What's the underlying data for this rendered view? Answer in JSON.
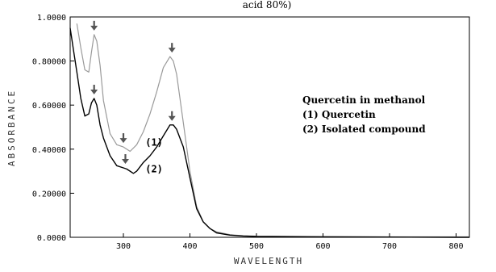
{
  "header_fragment": "acid 80%)",
  "chart_data": {
    "type": "line",
    "title": "",
    "xlabel": "WAVELENGTH",
    "ylabel": "ABSORBANCE",
    "xlim": [
      220,
      820
    ],
    "ylim": [
      0,
      1.0
    ],
    "x_ticks": [
      300,
      400,
      500,
      600,
      700,
      800
    ],
    "x_tick_labels": [
      "300",
      "400",
      "500",
      "600",
      "700",
      "800"
    ],
    "y_ticks": [
      0,
      0.2,
      0.4,
      0.6,
      0.8,
      1.0
    ],
    "y_tick_labels": [
      "0.0000",
      "0.20000",
      "0.40000",
      "0.60000",
      "0.80000",
      "1.0000"
    ],
    "grid": false,
    "legend": {
      "placement": "right",
      "title": "Quercetin in methanol",
      "entries": [
        "(1) Quercetin",
        "(2) Isolated compound"
      ]
    },
    "series": [
      {
        "name": "(1) Quercetin",
        "color": "#9a9a9a",
        "x": [
          230,
          236,
          242,
          248,
          252,
          256,
          260,
          265,
          270,
          280,
          290,
          300,
          310,
          320,
          330,
          340,
          350,
          360,
          370,
          375,
          380,
          390,
          400,
          410,
          420,
          430,
          440,
          460,
          480,
          500,
          600,
          700,
          800,
          820
        ],
        "y": [
          0.97,
          0.86,
          0.76,
          0.75,
          0.84,
          0.92,
          0.89,
          0.78,
          0.62,
          0.47,
          0.42,
          0.41,
          0.39,
          0.42,
          0.48,
          0.56,
          0.66,
          0.77,
          0.82,
          0.8,
          0.74,
          0.52,
          0.3,
          0.14,
          0.07,
          0.04,
          0.025,
          0.012,
          0.007,
          0.005,
          0.003,
          0.002,
          0.002,
          0.002
        ]
      },
      {
        "name": "(2) Isolated compound",
        "color": "#000000",
        "x": [
          220,
          225,
          230,
          236,
          242,
          248,
          252,
          256,
          260,
          265,
          270,
          280,
          290,
          300,
          305,
          310,
          315,
          320,
          330,
          340,
          350,
          360,
          370,
          375,
          380,
          390,
          400,
          410,
          420,
          430,
          440,
          460,
          480,
          500,
          600,
          700,
          800,
          820
        ],
        "y": [
          0.95,
          0.85,
          0.75,
          0.63,
          0.55,
          0.56,
          0.61,
          0.63,
          0.6,
          0.51,
          0.45,
          0.37,
          0.325,
          0.315,
          0.31,
          0.3,
          0.29,
          0.3,
          0.34,
          0.37,
          0.41,
          0.46,
          0.51,
          0.51,
          0.49,
          0.41,
          0.27,
          0.13,
          0.07,
          0.04,
          0.02,
          0.01,
          0.006,
          0.004,
          0.002,
          0.001,
          0.0,
          0.0
        ]
      }
    ],
    "annotations": [
      {
        "text": "(1)",
        "x": 333,
        "y": 0.43
      },
      {
        "text": "(2)",
        "x": 333,
        "y": 0.31
      }
    ],
    "arrows": [
      {
        "series": 0,
        "x": 256,
        "y": 0.92
      },
      {
        "series": 0,
        "x": 300,
        "y": 0.41
      },
      {
        "series": 0,
        "x": 373,
        "y": 0.82
      },
      {
        "series": 1,
        "x": 256,
        "y": 0.63
      },
      {
        "series": 1,
        "x": 303,
        "y": 0.315
      },
      {
        "series": 1,
        "x": 373,
        "y": 0.51
      }
    ]
  }
}
